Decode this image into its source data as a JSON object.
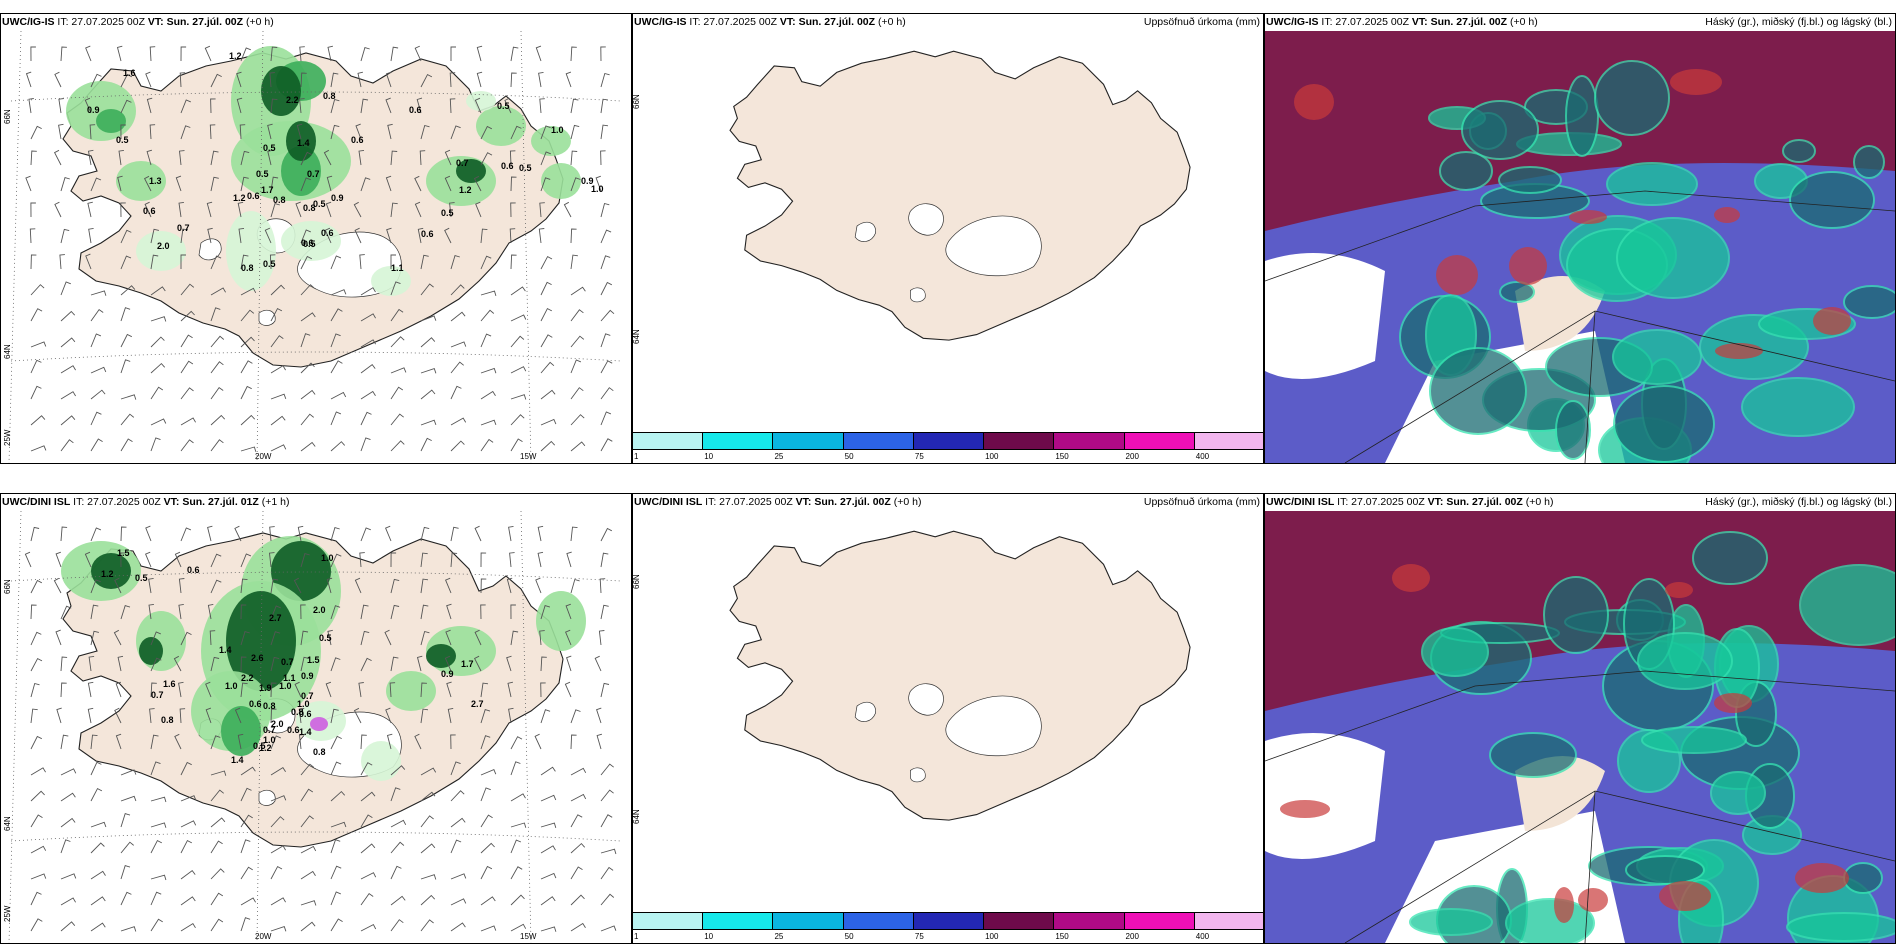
{
  "panels": {
    "r1c1": {
      "model": "UWC/IG-IS",
      "it": "IT: 27.07.2025 00Z",
      "vt_label": "VT:",
      "vt": "Sun. 27.júl. 00Z",
      "lead": "(+0 h)"
    },
    "r1c2": {
      "model": "UWC/IG-IS",
      "it": "IT: 27.07.2025 00Z",
      "vt_label": "VT:",
      "vt": "Sun. 27.júl. 00Z",
      "lead": "(+0 h)",
      "right": "Uppsöfnuð úrkoma (mm)"
    },
    "r1c3": {
      "model": "UWC/IG-IS",
      "it": "IT: 27.07.2025 00Z",
      "vt_label": "VT:",
      "vt": "Sun. 27.júl. 00Z",
      "lead": "(+0 h)",
      "right": "Háský (gr.), miðský (fj.bl.) og lágský (bl.)"
    },
    "r2c1": {
      "model": "UWC/DINI ISL",
      "it": "IT: 27.07.2025 00Z",
      "vt_label": "VT:",
      "vt": "Sun. 27.júl. 01Z",
      "lead": "(+1 h)"
    },
    "r2c2": {
      "model": "UWC/DINI ISL",
      "it": "IT: 27.07.2025 00Z",
      "vt_label": "VT:",
      "vt": "Sun. 27.júl. 00Z",
      "lead": "(+0 h)",
      "right": "Uppsöfnuð úrkoma (mm)"
    },
    "r2c3": {
      "model": "UWC/DINI ISL",
      "it": "IT: 27.07.2025 00Z",
      "vt_label": "VT:",
      "vt": "Sun. 27.júl. 00Z",
      "lead": "(+0 h)",
      "right": "Háský (gr.), miðský (fj.bl.) og lágský (bl.)"
    }
  },
  "axes": {
    "lat_66": "66N",
    "lat_64": "64N",
    "lon_25": "25W",
    "lon_20": "20W",
    "lon_15": "15W"
  },
  "colorbar": {
    "labels": [
      "1",
      "10",
      "25",
      "50",
      "75",
      "100",
      "150",
      "200",
      "400"
    ],
    "colors": [
      "#b8f4f2",
      "#16e8ea",
      "#0ab5e0",
      "#2c63e6",
      "#2327b4",
      "#6e0a4a",
      "#b00a86",
      "#ee10b6",
      "#f2b6ee"
    ]
  },
  "precip_labels": {
    "r1": [
      "1.2",
      "1.6",
      "0.9",
      "0.5",
      "2.2",
      "0.8",
      "0.6",
      "0.5",
      "1.0",
      "0.6",
      "0.5",
      "1.4",
      "0.5",
      "0.7",
      "1.2",
      "0.8",
      "0.6",
      "0.9",
      "0.5",
      "0.8",
      "0.7",
      "0.6",
      "0.5",
      "0.9",
      "1.0",
      "0.5",
      "0.6",
      "0.5",
      "1.3",
      "0.6",
      "0.7",
      "0.8",
      "0.6",
      "0.6",
      "1.1",
      "1.2",
      "2.0",
      "1.7",
      "0.5"
    ],
    "r2": [
      "1.5",
      "1.2",
      "0.5",
      "0.6",
      "1.0",
      "2.7",
      "2.0",
      "0.5",
      "1.4",
      "2.6",
      "2.2",
      "1.0",
      "1.9",
      "1.5",
      "0.9",
      "0.7",
      "1.1",
      "1.0",
      "0.6",
      "0.8",
      "0.7",
      "0.6",
      "1.4",
      "2.0",
      "0.8",
      "1.0",
      "1.0",
      "0.7",
      "0.5",
      "0.6",
      "0.8",
      "0.8",
      "1.4",
      "1.2",
      "2.7",
      "0.9",
      "1.7",
      "1.6",
      "0.7"
    ]
  },
  "cloud_colors": {
    "high": "#7d1d4c",
    "mid": "#5c5cc8",
    "low": "#17c79a",
    "low_dark": "#1a6b72",
    "clear_land": "#f3e4d6"
  },
  "land_color": "#f4e6da",
  "precip_green": [
    "#d6f5d6",
    "#9ae09a",
    "#3cae5a",
    "#0d5c25"
  ]
}
